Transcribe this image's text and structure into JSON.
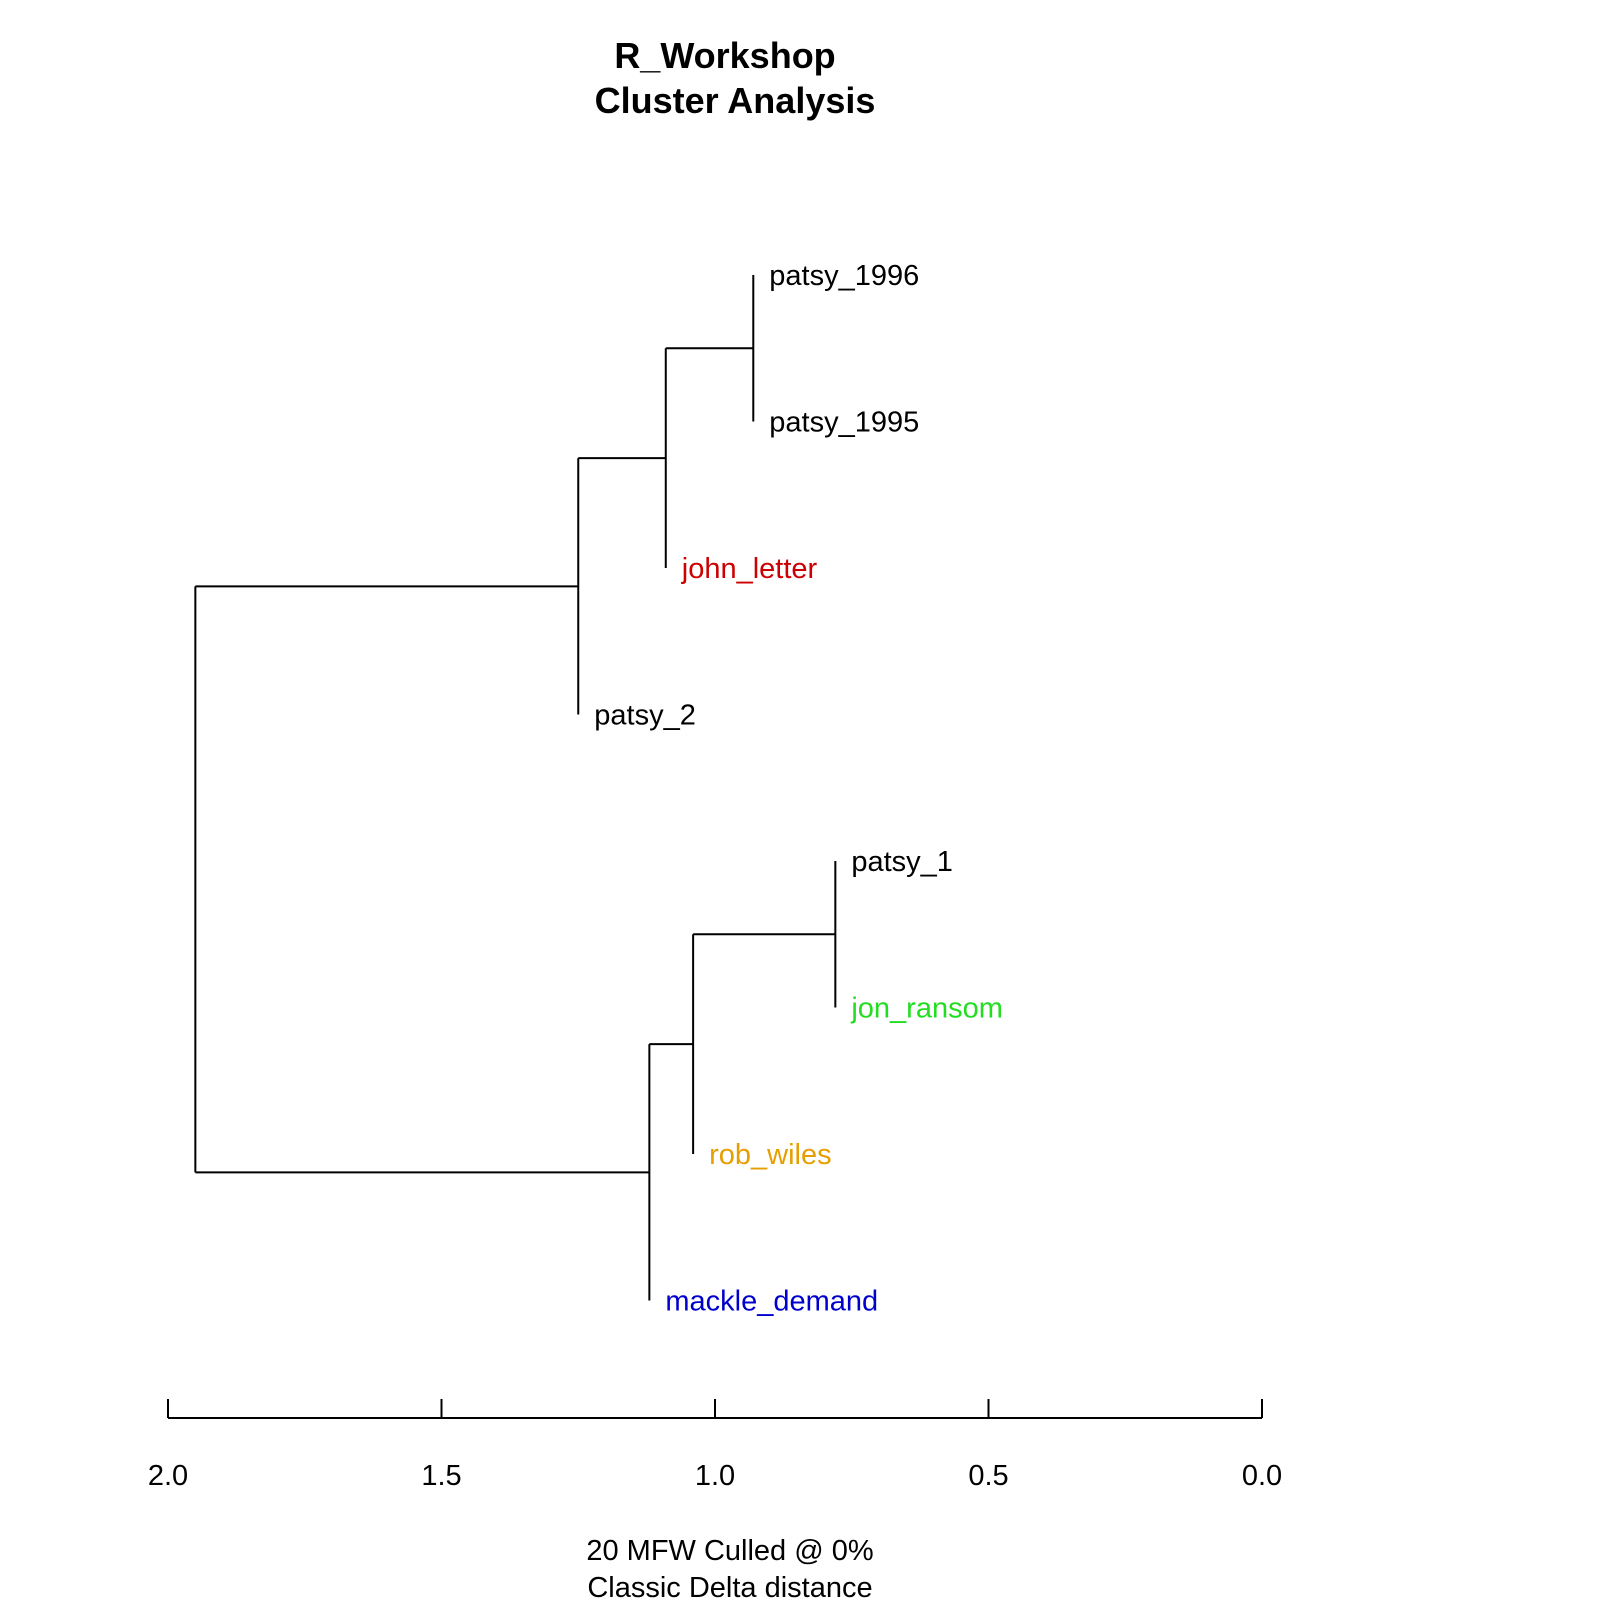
{
  "chart_data": {
    "type": "dendrogram",
    "title": [
      "R_Workshop",
      "Cluster Analysis"
    ],
    "subtitle": [
      "20 MFW  Culled @ 0%",
      "Classic Delta distance"
    ],
    "xlim": [
      2.0,
      0.0
    ],
    "ticks": [
      2.0,
      1.5,
      1.0,
      0.5,
      0.0
    ],
    "tick_labels": [
      "2.0",
      "1.5",
      "1.0",
      "0.5",
      "0.0"
    ],
    "leaves": [
      {
        "label": "patsy_1996",
        "color": "#000000"
      },
      {
        "label": "patsy_1995",
        "color": "#000000"
      },
      {
        "label": "john_letter",
        "color": "#cc0000"
      },
      {
        "label": "patsy_2",
        "color": "#000000"
      },
      {
        "label": "patsy_1",
        "color": "#000000"
      },
      {
        "label": "jon_ransom",
        "color": "#22dd22"
      },
      {
        "label": "rob_wiles",
        "color": "#e69f00"
      },
      {
        "label": "mackle_demand",
        "color": "#0000cc"
      }
    ],
    "merges": [
      {
        "id": "a",
        "children": [
          "patsy_1996",
          "patsy_1995"
        ],
        "height": 0.93
      },
      {
        "id": "b",
        "children": [
          "a",
          "john_letter"
        ],
        "height": 1.09
      },
      {
        "id": "c",
        "children": [
          "b",
          "patsy_2"
        ],
        "height": 1.25
      },
      {
        "id": "d",
        "children": [
          "patsy_1",
          "jon_ransom"
        ],
        "height": 0.78
      },
      {
        "id": "e",
        "children": [
          "d",
          "rob_wiles"
        ],
        "height": 1.04
      },
      {
        "id": "f",
        "children": [
          "e",
          "mackle_demand"
        ],
        "height": 1.12
      },
      {
        "id": "g",
        "children": [
          "c",
          "f"
        ],
        "height": 1.95
      }
    ]
  }
}
